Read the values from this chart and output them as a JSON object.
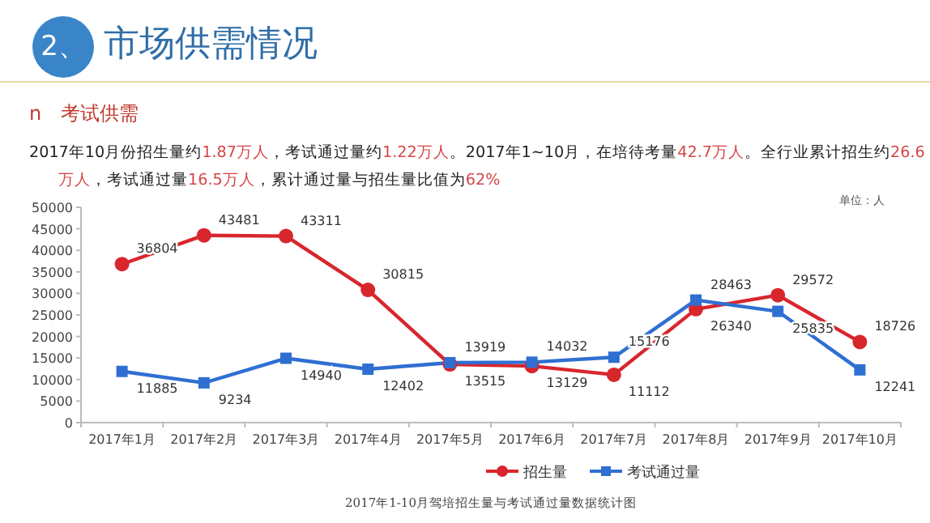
{
  "chart_data": {
    "type": "line",
    "title": "2、市场供需情况",
    "subtitle": "n　考试供需",
    "annotations": [
      "2017年10月份招生量约1.87万人，考试通过量约1.22万人。2017年1~10月，在培待考量42.7万人。全行业累计招生约26.6万人，考试通过量16.5万人，累计通过量与招生量比值为62%",
      "单位：人",
      "2017年1-10月驾培招生量与考试通过量数据统计图"
    ],
    "categories": [
      "2017年1月",
      "2017年2月",
      "2017年3月",
      "2017年4月",
      "2017年5月",
      "2017年6月",
      "2017年7月",
      "2017年8月",
      "2017年9月",
      "2017年10月"
    ],
    "series": [
      {
        "name": "招生量",
        "color": "#d8262d",
        "marker": "circle",
        "values": [
          36804,
          43481,
          43311,
          30815,
          13515,
          13129,
          11112,
          26340,
          29572,
          18726
        ]
      },
      {
        "name": "考试通过量",
        "color": "#2f6fd2",
        "marker": "square",
        "values": [
          11885,
          9234,
          14940,
          12402,
          13919,
          14032,
          15176,
          28463,
          25835,
          12241
        ]
      }
    ],
    "ylim": [
      0,
      50000
    ],
    "yticks": [
      0,
      5000,
      10000,
      15000,
      20000,
      25000,
      30000,
      35000,
      40000,
      45000,
      50000
    ],
    "data_labels": true,
    "legend": "bottom",
    "grid": false
  }
}
